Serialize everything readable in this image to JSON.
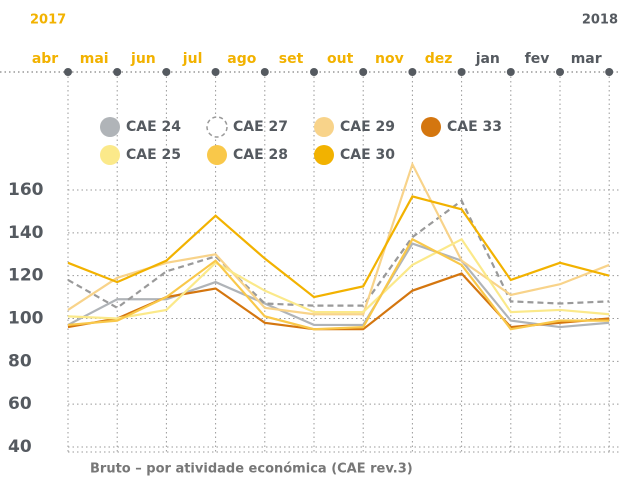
{
  "chart_data": {
    "type": "line",
    "years": [
      "2017",
      "2018"
    ],
    "categories": [
      "abr",
      "mai",
      "jun",
      "jul",
      "ago",
      "set",
      "out",
      "nov",
      "dez",
      "jan",
      "fev",
      "mar"
    ],
    "series": [
      {
        "name": "CAE 24",
        "color": "#b0b4b8",
        "values": [
          97,
          109,
          109,
          117,
          107,
          97,
          97,
          135,
          127,
          99,
          96,
          98
        ]
      },
      {
        "name": "CAE 27",
        "color": "#9a9a9a",
        "dash": true,
        "values": [
          118,
          105,
          122,
          129,
          107,
          106,
          106,
          138,
          155,
          108,
          107,
          108
        ]
      },
      {
        "name": "CAE 29",
        "color": "#f8d38a",
        "values": [
          104,
          119,
          126,
          130,
          105,
          102,
          102,
          172,
          127,
          111,
          116,
          125
        ]
      },
      {
        "name": "CAE 33",
        "color": "#d4760f",
        "values": [
          96,
          100,
          110,
          114,
          98,
          95,
          95,
          113,
          121,
          96,
          98,
          100
        ]
      },
      {
        "name": "CAE 25",
        "color": "#fbe98a",
        "values": [
          101,
          100,
          104,
          126,
          113,
          103,
          103,
          125,
          137,
          103,
          104,
          102
        ]
      },
      {
        "name": "CAE 28",
        "color": "#f9c84a",
        "values": [
          97,
          99,
          110,
          127,
          101,
          95,
          96,
          137,
          125,
          95,
          99,
          99
        ]
      },
      {
        "name": "CAE 30",
        "color": "#f2b200",
        "values": [
          126,
          117,
          127,
          148,
          128,
          110,
          115,
          157,
          151,
          118,
          126,
          120
        ]
      }
    ],
    "ylim": [
      40,
      160
    ],
    "yticks": [
      40,
      60,
      80,
      100,
      120,
      140,
      160
    ],
    "grid": true,
    "footer": "Bruto – por atividade económica (CAE rev.3)"
  }
}
